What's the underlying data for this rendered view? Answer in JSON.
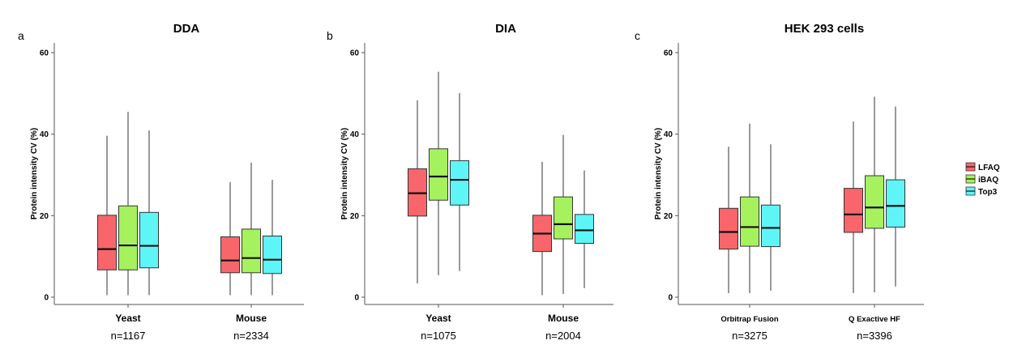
{
  "figure": {
    "legend": [
      {
        "label": "LFAQ",
        "color": "#F8666B"
      },
      {
        "label": "iBAQ",
        "color": "#A6F25E"
      },
      {
        "label": "Top3",
        "color": "#5EF5F7"
      }
    ]
  },
  "chart_data": [
    {
      "type": "box",
      "panel_letter": "a",
      "title": "DDA",
      "ylabel": "Protein intensity CV (%)",
      "ylim": [
        0,
        60
      ],
      "yticks": [
        0,
        20,
        40,
        60
      ],
      "grid": false,
      "categories": [
        "Yeast",
        "Mouse"
      ],
      "counts": [
        "n=1167",
        "n=2334"
      ],
      "series": [
        {
          "name": "LFAQ",
          "color": "#F8666B",
          "boxes": [
            {
              "min": 0.5,
              "q1": 6.7,
              "median": 11.8,
              "q3": 20.1,
              "max": 39.6
            },
            {
              "min": 0.5,
              "q1": 6.0,
              "median": 9.0,
              "q3": 14.8,
              "max": 28.2
            }
          ]
        },
        {
          "name": "iBAQ",
          "color": "#A6F25E",
          "boxes": [
            {
              "min": 0.5,
              "q1": 6.7,
              "median": 12.7,
              "q3": 22.4,
              "max": 45.5
            },
            {
              "min": 0.5,
              "q1": 6.0,
              "median": 9.6,
              "q3": 16.7,
              "max": 33.0
            }
          ]
        },
        {
          "name": "Top3",
          "color": "#5EF5F7",
          "boxes": [
            {
              "min": 0.5,
              "q1": 7.2,
              "median": 12.6,
              "q3": 20.8,
              "max": 40.9
            },
            {
              "min": 0.5,
              "q1": 5.8,
              "median": 9.2,
              "q3": 15.0,
              "max": 28.8
            }
          ]
        }
      ]
    },
    {
      "type": "box",
      "panel_letter": "b",
      "title": "DIA",
      "ylabel": "Protein intensity CV (%)",
      "ylim": [
        0,
        60
      ],
      "yticks": [
        0,
        20,
        40,
        60
      ],
      "grid": false,
      "categories": [
        "Yeast",
        "Mouse"
      ],
      "counts": [
        "n=1075",
        "n=2004"
      ],
      "series": [
        {
          "name": "LFAQ",
          "color": "#F8666B",
          "boxes": [
            {
              "min": 3.4,
              "q1": 19.9,
              "median": 25.5,
              "q3": 31.5,
              "max": 48.3
            },
            {
              "min": 0.5,
              "q1": 11.2,
              "median": 15.6,
              "q3": 20.1,
              "max": 33.2
            }
          ]
        },
        {
          "name": "iBAQ",
          "color": "#A6F25E",
          "boxes": [
            {
              "min": 5.4,
              "q1": 23.8,
              "median": 29.6,
              "q3": 36.4,
              "max": 55.3
            },
            {
              "min": 0.8,
              "q1": 14.3,
              "median": 17.9,
              "q3": 24.6,
              "max": 39.8
            }
          ]
        },
        {
          "name": "Top3",
          "color": "#5EF5F7",
          "boxes": [
            {
              "min": 6.4,
              "q1": 22.6,
              "median": 28.8,
              "q3": 33.5,
              "max": 50.1
            },
            {
              "min": 2.2,
              "q1": 13.2,
              "median": 16.4,
              "q3": 20.3,
              "max": 31.1
            }
          ]
        }
      ]
    },
    {
      "type": "box",
      "panel_letter": "c",
      "title": "HEK 293 cells",
      "ylabel": "Protein intensity CV (%)",
      "ylim": [
        0,
        60
      ],
      "yticks": [
        0,
        20,
        40,
        60
      ],
      "grid": false,
      "categories": [
        "Orbitrap Fusion",
        "Q Exactive HF"
      ],
      "counts": [
        "n=3275",
        "n=3396"
      ],
      "series": [
        {
          "name": "LFAQ",
          "color": "#F8666B",
          "boxes": [
            {
              "min": 1.0,
              "q1": 11.8,
              "median": 16.0,
              "q3": 21.8,
              "max": 36.9
            },
            {
              "min": 1.0,
              "q1": 15.9,
              "median": 20.3,
              "q3": 26.7,
              "max": 43.1
            }
          ]
        },
        {
          "name": "iBAQ",
          "color": "#A6F25E",
          "boxes": [
            {
              "min": 1.0,
              "q1": 12.5,
              "median": 17.2,
              "q3": 24.6,
              "max": 42.6
            },
            {
              "min": 1.2,
              "q1": 16.9,
              "median": 22.0,
              "q3": 29.8,
              "max": 49.2
            }
          ]
        },
        {
          "name": "Top3",
          "color": "#5EF5F7",
          "boxes": [
            {
              "min": 1.6,
              "q1": 12.4,
              "median": 17.0,
              "q3": 22.6,
              "max": 37.5
            },
            {
              "min": 2.6,
              "q1": 17.2,
              "median": 22.4,
              "q3": 28.8,
              "max": 46.8
            }
          ]
        }
      ]
    }
  ]
}
